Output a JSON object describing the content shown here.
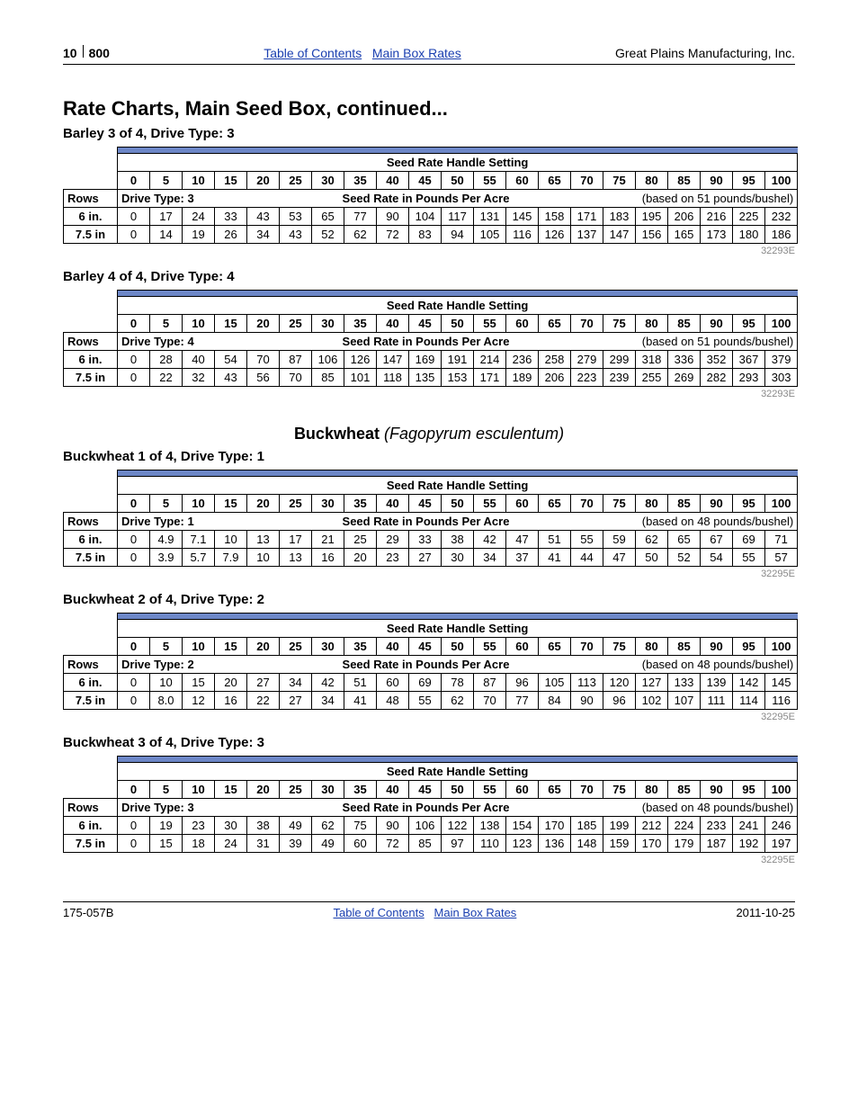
{
  "header": {
    "page_number": "10",
    "model": "800",
    "toc_link": "Table of Contents",
    "main_box_link": "Main Box Rates",
    "manufacturer": "Great Plains Manufacturing, Inc."
  },
  "title": "Rate Charts, Main Seed Box, continued...",
  "handle_header_text": "Seed Rate Handle Setting",
  "handle_values": [
    "0",
    "5",
    "10",
    "15",
    "20",
    "25",
    "30",
    "35",
    "40",
    "45",
    "50",
    "55",
    "60",
    "65",
    "70",
    "75",
    "80",
    "85",
    "90",
    "95",
    "100"
  ],
  "rows_label": "Rows",
  "rate_label": "Seed Rate in Pounds Per Acre",
  "sections": [
    {
      "subtitle": "Barley 3 of 4, Drive Type: 3",
      "drive_label": "Drive Type: 3",
      "basis": "(based on 51 pounds/bushel)",
      "code": "32293E",
      "rows": [
        {
          "name": "6 in.",
          "vals": [
            "0",
            "17",
            "24",
            "33",
            "43",
            "53",
            "65",
            "77",
            "90",
            "104",
            "117",
            "131",
            "145",
            "158",
            "171",
            "183",
            "195",
            "206",
            "216",
            "225",
            "232"
          ]
        },
        {
          "name": "7.5 in",
          "vals": [
            "0",
            "14",
            "19",
            "26",
            "34",
            "43",
            "52",
            "62",
            "72",
            "83",
            "94",
            "105",
            "116",
            "126",
            "137",
            "147",
            "156",
            "165",
            "173",
            "180",
            "186"
          ]
        }
      ]
    },
    {
      "subtitle": "Barley 4 of 4, Drive Type: 4",
      "drive_label": "Drive Type: 4",
      "basis": "(based on 51 pounds/bushel)",
      "code": "32293E",
      "rows": [
        {
          "name": "6 in.",
          "vals": [
            "0",
            "28",
            "40",
            "54",
            "70",
            "87",
            "106",
            "126",
            "147",
            "169",
            "191",
            "214",
            "236",
            "258",
            "279",
            "299",
            "318",
            "336",
            "352",
            "367",
            "379"
          ]
        },
        {
          "name": "7.5 in",
          "vals": [
            "0",
            "22",
            "32",
            "43",
            "56",
            "70",
            "85",
            "101",
            "118",
            "135",
            "153",
            "171",
            "189",
            "206",
            "223",
            "239",
            "255",
            "269",
            "282",
            "293",
            "303"
          ]
        }
      ]
    }
  ],
  "crop_heading": {
    "common": "Buckwheat",
    "sci": "(Fagopyrum esculentum)"
  },
  "sections2": [
    {
      "subtitle": "Buckwheat 1 of 4, Drive Type: 1",
      "drive_label": "Drive Type: 1",
      "basis": "(based on 48 pounds/bushel)",
      "code": "32295E",
      "rows": [
        {
          "name": "6 in.",
          "vals": [
            "0",
            "4.9",
            "7.1",
            "10",
            "13",
            "17",
            "21",
            "25",
            "29",
            "33",
            "38",
            "42",
            "47",
            "51",
            "55",
            "59",
            "62",
            "65",
            "67",
            "69",
            "71"
          ]
        },
        {
          "name": "7.5 in",
          "vals": [
            "0",
            "3.9",
            "5.7",
            "7.9",
            "10",
            "13",
            "16",
            "20",
            "23",
            "27",
            "30",
            "34",
            "37",
            "41",
            "44",
            "47",
            "50",
            "52",
            "54",
            "55",
            "57"
          ]
        }
      ]
    },
    {
      "subtitle": "Buckwheat 2 of 4, Drive Type: 2",
      "drive_label": "Drive Type: 2",
      "basis": "(based on 48 pounds/bushel)",
      "code": "32295E",
      "rows": [
        {
          "name": "6 in.",
          "vals": [
            "0",
            "10",
            "15",
            "20",
            "27",
            "34",
            "42",
            "51",
            "60",
            "69",
            "78",
            "87",
            "96",
            "105",
            "113",
            "120",
            "127",
            "133",
            "139",
            "142",
            "145"
          ]
        },
        {
          "name": "7.5 in",
          "vals": [
            "0",
            "8.0",
            "12",
            "16",
            "22",
            "27",
            "34",
            "41",
            "48",
            "55",
            "62",
            "70",
            "77",
            "84",
            "90",
            "96",
            "102",
            "107",
            "111",
            "114",
            "116"
          ]
        }
      ]
    },
    {
      "subtitle": "Buckwheat 3 of 4, Drive Type: 3",
      "drive_label": "Drive Type: 3",
      "basis": "(based on 48 pounds/bushel)",
      "code": "32295E",
      "rows": [
        {
          "name": "6 in.",
          "vals": [
            "0",
            "19",
            "23",
            "30",
            "38",
            "49",
            "62",
            "75",
            "90",
            "106",
            "122",
            "138",
            "154",
            "170",
            "185",
            "199",
            "212",
            "224",
            "233",
            "241",
            "246"
          ]
        },
        {
          "name": "7.5 in",
          "vals": [
            "0",
            "15",
            "18",
            "24",
            "31",
            "39",
            "49",
            "60",
            "72",
            "85",
            "97",
            "110",
            "123",
            "136",
            "148",
            "159",
            "170",
            "179",
            "187",
            "192",
            "197"
          ]
        }
      ]
    }
  ],
  "footer": {
    "doc": "175-057B",
    "toc_link": "Table of Contents",
    "main_box_link": "Main Box Rates",
    "date": "2011-10-25"
  },
  "colors": {
    "bluebar": "#6d87c7",
    "link": "#1a3fb0"
  }
}
